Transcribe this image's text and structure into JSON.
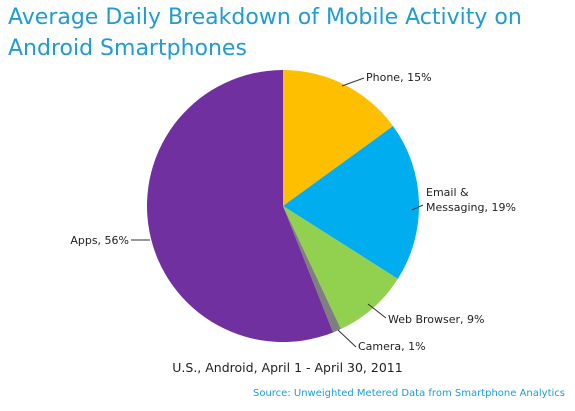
{
  "chart_data": {
    "type": "pie",
    "title": "Average Daily Breakdown of Mobile Activity on Android Smartphones",
    "subtitle": "U.S., Android, April 1 - April 30, 2011",
    "source": "Source: Unweighted Metered Data from Smartphone Analytics",
    "slices": [
      {
        "name": "Phone",
        "value": 15,
        "color": "#FDBF00",
        "label_lines": [
          "Phone, 15%"
        ],
        "anchor": "start"
      },
      {
        "name": "Email & Messaging",
        "value": 19,
        "color": "#00AEEF",
        "label_lines": [
          "Email &",
          "Messaging, 19%"
        ],
        "anchor": "start"
      },
      {
        "name": "Web Browser",
        "value": 9,
        "color": "#92D050",
        "label_lines": [
          "Web Browser, 9%"
        ],
        "anchor": "start"
      },
      {
        "name": "Camera",
        "value": 1,
        "color": "#7F7F7F",
        "label_lines": [
          "Camera, 1%"
        ],
        "anchor": "start"
      },
      {
        "name": "Apps",
        "value": 56,
        "color": "#7030A0",
        "label_lines": [
          "Apps, 56%"
        ],
        "anchor": "end"
      }
    ]
  }
}
